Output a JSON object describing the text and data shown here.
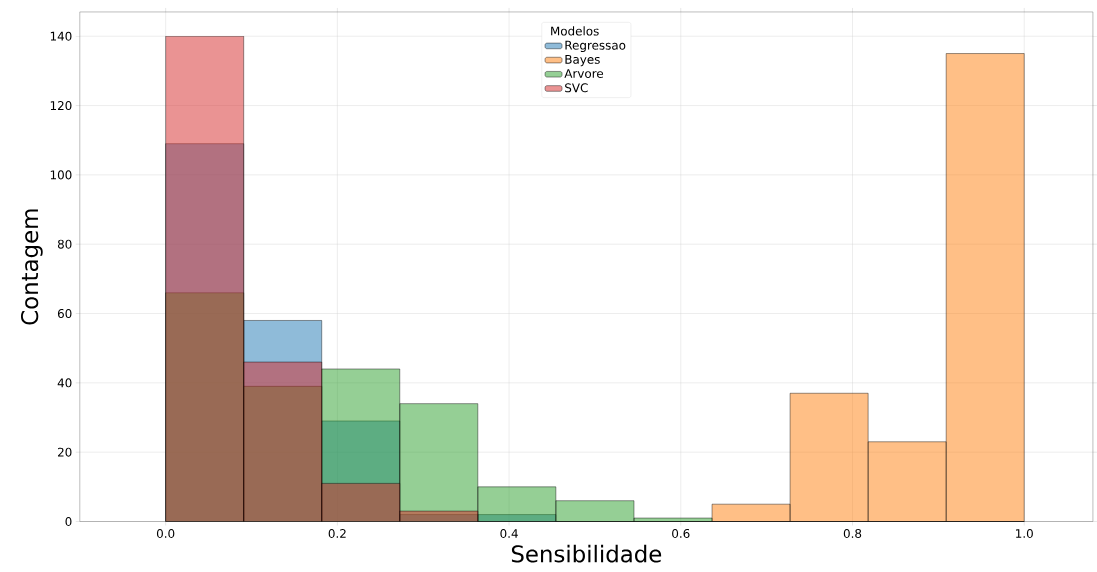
{
  "chart_data": {
    "type": "histogram",
    "xlabel": "Sensibilidade",
    "ylabel": "Contagem",
    "legend_title": "Modelos",
    "bins": [
      0,
      0.0909,
      0.1818,
      0.2727,
      0.3636,
      0.4545,
      0.5455,
      0.6364,
      0.7273,
      0.8182,
      0.9091,
      1.0
    ],
    "series": [
      {
        "name": "Regressao",
        "color": "#1f77b4",
        "values": [
          109,
          58,
          29,
          2,
          2,
          0,
          0,
          0,
          0,
          0,
          0
        ]
      },
      {
        "name": "Bayes",
        "color": "#ff7f0e",
        "values": [
          0,
          0,
          0,
          0,
          0,
          0,
          0,
          5,
          37,
          23,
          135
        ]
      },
      {
        "name": "Arvore",
        "color": "#2ca02c",
        "values": [
          66,
          39,
          44,
          34,
          10,
          6,
          1,
          0,
          0,
          0,
          0
        ]
      },
      {
        "name": "SVC",
        "color": "#d62728",
        "values": [
          140,
          46,
          11,
          3,
          0,
          0,
          0,
          0,
          0,
          0,
          0
        ]
      }
    ],
    "xlim": [
      -0.1,
      1.08
    ],
    "ylim": [
      0,
      147
    ],
    "xticks": [
      {
        "value": 0,
        "label": "0.0"
      },
      0.2,
      0.4,
      0.6,
      0.8,
      {
        "value": 1,
        "label": "1.0"
      }
    ],
    "yticks": [
      0,
      20,
      40,
      60,
      80,
      100,
      120,
      140
    ],
    "grid": true,
    "legend": "top"
  }
}
